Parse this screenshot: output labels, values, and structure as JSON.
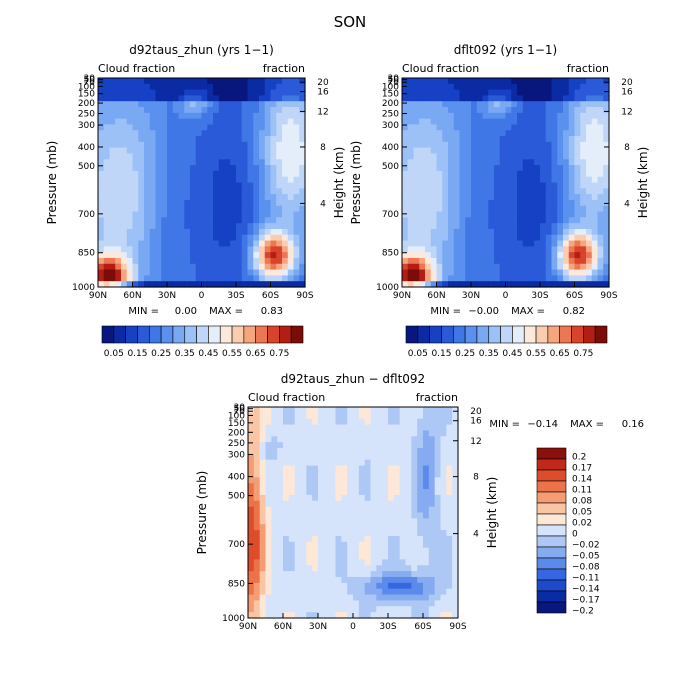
{
  "page_title": "SON",
  "colors": {
    "levels": [
      "#08177e",
      "#0a2ba3",
      "#1741c4",
      "#2a5ad8",
      "#4077e6",
      "#5a91ee",
      "#7aa9f3",
      "#9cc1f6",
      "#bfd6f8",
      "#e4eefb",
      "#fde9dc",
      "#fbcdb0",
      "#f6a67f",
      "#ed7752",
      "#d9432b",
      "#b21d14",
      "#7c0c08"
    ],
    "diff": [
      "#08177e",
      "#0a2ba3",
      "#1d49cc",
      "#3767e0",
      "#5a8bea",
      "#86abf1",
      "#aec8f5",
      "#d6e4fb",
      "#fde7d7",
      "#f9c5a4",
      "#f49c73",
      "#ec7347",
      "#dd4d2b",
      "#c1281a",
      "#8b0f0a"
    ]
  },
  "chart_data": [
    {
      "type": "heatmap",
      "panel": "left",
      "title": "d92taus_zhun (yrs 1−1)",
      "left_annotation": "Cloud fraction",
      "right_annotation": "fraction",
      "ylabel": "Pressure (mb)",
      "y2label": "Height (km)",
      "x_ticks": [
        "90N",
        "60N",
        "30N",
        "0",
        "30S",
        "60S",
        "90S"
      ],
      "y_ticks": [
        "1000",
        "850",
        "700",
        "500",
        "400",
        "300",
        "250",
        "200",
        "150",
        "100",
        "70",
        "50",
        "30"
      ],
      "y_tick_values": [
        1000,
        850,
        700,
        500,
        400,
        300,
        250,
        200,
        150,
        100,
        70,
        50,
        30
      ],
      "y2_ticks": [
        "4",
        "8",
        "12",
        "16",
        "20"
      ],
      "y2_tick_values": [
        4,
        8,
        12,
        16,
        20
      ],
      "min_label": "MIN =",
      "min_value": "0.00",
      "max_label": "MAX =",
      "max_value": "0.83",
      "xlim": [
        90,
        -90
      ],
      "ylim": [
        1000,
        30
      ],
      "colorbar_labels": [
        "0.05",
        "0.15",
        "0.25",
        "0.35",
        "0.45",
        "0.55",
        "0.65",
        "0.75"
      ]
    },
    {
      "type": "heatmap",
      "panel": "right",
      "title": "dflt092 (yrs 1−1)",
      "left_annotation": "Cloud fraction",
      "right_annotation": "fraction",
      "ylabel": "Pressure (mb)",
      "y2label": "Height (km)",
      "x_ticks": [
        "90N",
        "60N",
        "30N",
        "0",
        "30S",
        "60S",
        "90S"
      ],
      "y_ticks": [
        "1000",
        "850",
        "700",
        "500",
        "400",
        "300",
        "250",
        "200",
        "150",
        "100",
        "70",
        "50",
        "30"
      ],
      "y_tick_values": [
        1000,
        850,
        700,
        500,
        400,
        300,
        250,
        200,
        150,
        100,
        70,
        50,
        30
      ],
      "y2_ticks": [
        "4",
        "8",
        "12",
        "16",
        "20"
      ],
      "y2_tick_values": [
        4,
        8,
        12,
        16,
        20
      ],
      "min_label": "MIN =",
      "min_value": "−0.00",
      "max_label": "MAX =",
      "max_value": "0.82",
      "xlim": [
        90,
        -90
      ],
      "ylim": [
        1000,
        30
      ],
      "colorbar_labels": [
        "0.05",
        "0.15",
        "0.25",
        "0.35",
        "0.45",
        "0.55",
        "0.65",
        "0.75"
      ]
    },
    {
      "type": "heatmap",
      "panel": "bottom",
      "title": "d92taus_zhun − dflt092",
      "left_annotation": "Cloud fraction",
      "right_annotation": "fraction",
      "ylabel": "Pressure (mb)",
      "y2label": "Height (km)",
      "x_ticks": [
        "90N",
        "60N",
        "30N",
        "0",
        "30S",
        "60S",
        "90S"
      ],
      "y_ticks": [
        "1000",
        "850",
        "700",
        "500",
        "400",
        "300",
        "250",
        "200",
        "150",
        "100",
        "70",
        "50",
        "30"
      ],
      "y_tick_values": [
        1000,
        850,
        700,
        500,
        400,
        300,
        250,
        200,
        150,
        100,
        70,
        50,
        30
      ],
      "y2_ticks": [
        "4",
        "8",
        "12",
        "16",
        "20"
      ],
      "y2_tick_values": [
        4,
        8,
        12,
        16,
        20
      ],
      "min_label": "MIN =",
      "min_value": "−0.14",
      "max_label": "MAX =",
      "max_value": "0.16",
      "xlim": [
        90,
        -90
      ],
      "ylim": [
        1000,
        30
      ],
      "colorbar_labels": [
        "0.2",
        "0.17",
        "0.14",
        "0.11",
        "0.08",
        "0.05",
        "0.02",
        "0",
        "−0.02",
        "−0.05",
        "−0.08",
        "−0.11",
        "−0.14",
        "−0.17",
        "−0.2"
      ]
    }
  ]
}
